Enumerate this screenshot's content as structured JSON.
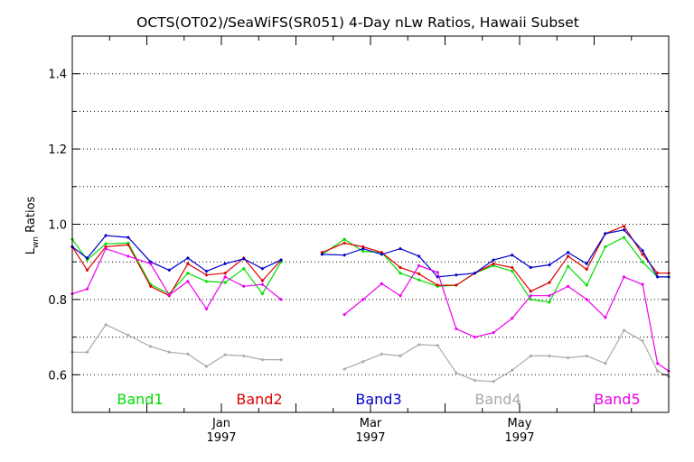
{
  "chart_data": {
    "type": "line",
    "title": "OCTS(OT02)/SeaWiFS(SR051) 4-Day nLw Ratios, Hawaii Subset",
    "ylabel_main": "L",
    "ylabel_sub": "wn",
    "ylabel_rest": " Ratios",
    "xlabel": "",
    "xlim": [
      0,
      8
    ],
    "ylim": [
      0.5,
      1.5
    ],
    "yticks": [
      0.6,
      0.8,
      1.0,
      1.2,
      1.4
    ],
    "ytick_labels": [
      "0.6",
      "0.8",
      "1.0",
      "1.2",
      "1.4"
    ],
    "ygrid": [
      0.6,
      0.7,
      0.8,
      0.9,
      1.0,
      1.1,
      1.2,
      1.3,
      1.4
    ],
    "grid": "horizontal dotted",
    "xticks": [
      {
        "x": 2.0,
        "label1": "Jan",
        "label2": "1997"
      },
      {
        "x": 4.0,
        "label1": "Mar",
        "label2": "1997"
      },
      {
        "x": 6.0,
        "label1": "May",
        "label2": "1997"
      }
    ],
    "x": [
      0.0,
      0.2,
      0.45,
      0.75,
      1.05,
      1.3,
      1.55,
      1.8,
      2.05,
      2.3,
      2.55,
      2.8,
      3.05,
      3.35,
      3.65,
      3.9,
      4.15,
      4.4,
      4.65,
      4.9,
      5.15,
      5.4,
      5.65,
      5.9,
      6.15,
      6.4,
      6.65,
      6.9,
      7.15,
      7.4,
      7.65,
      7.85,
      8.0
    ],
    "series": [
      {
        "name": "Band1",
        "color": "#00dd00",
        "values": [
          0.96,
          0.905,
          0.948,
          0.95,
          0.84,
          0.815,
          0.87,
          0.848,
          0.845,
          0.882,
          0.815,
          0.9,
          null,
          0.92,
          0.96,
          0.928,
          0.925,
          0.87,
          0.852,
          0.835,
          0.838,
          0.87,
          0.89,
          0.875,
          0.8,
          0.793,
          0.888,
          0.838,
          0.94,
          0.965,
          0.9,
          0.86,
          0.86
        ]
      },
      {
        "name": "Band2",
        "color": "#dd0000",
        "values": [
          0.94,
          0.878,
          0.94,
          0.945,
          0.835,
          0.81,
          0.895,
          0.865,
          0.87,
          0.91,
          0.85,
          0.905,
          null,
          0.925,
          0.95,
          0.94,
          0.925,
          0.885,
          0.868,
          0.838,
          0.838,
          0.87,
          0.895,
          0.885,
          0.822,
          0.845,
          0.915,
          0.88,
          0.975,
          0.995,
          0.92,
          0.87,
          0.87
        ]
      },
      {
        "name": "Band3",
        "color": "#0000cc",
        "values": [
          0.94,
          0.91,
          0.97,
          0.965,
          0.9,
          0.878,
          0.91,
          0.875,
          0.895,
          0.908,
          0.882,
          0.905,
          null,
          0.92,
          0.918,
          0.935,
          0.92,
          0.935,
          0.915,
          0.86,
          0.865,
          0.87,
          0.905,
          0.918,
          0.885,
          0.892,
          0.925,
          0.895,
          0.975,
          0.985,
          0.93,
          0.86,
          0.86
        ]
      },
      {
        "name": "Band4",
        "color": "#aaaaaa",
        "values": [
          0.66,
          0.66,
          0.733,
          0.705,
          0.675,
          0.66,
          0.655,
          0.622,
          0.653,
          0.65,
          0.64,
          0.64,
          null,
          null,
          0.615,
          0.635,
          0.655,
          0.65,
          0.68,
          0.678,
          0.605,
          0.585,
          0.582,
          0.612,
          0.65,
          0.65,
          0.645,
          0.65,
          0.63,
          0.718,
          0.69,
          0.61,
          0.595
        ]
      },
      {
        "name": "Band5",
        "color": "#ee00ee",
        "values": [
          0.815,
          0.828,
          0.935,
          0.915,
          0.895,
          0.812,
          0.848,
          0.775,
          0.86,
          0.835,
          0.84,
          0.8,
          null,
          null,
          0.76,
          0.8,
          0.842,
          0.81,
          0.89,
          0.872,
          0.722,
          0.7,
          0.712,
          0.75,
          0.81,
          0.81,
          0.835,
          0.8,
          0.752,
          0.86,
          0.84,
          0.63,
          0.61
        ]
      }
    ],
    "legend": {
      "placement": "bottom",
      "entries": [
        "Band1",
        "Band2",
        "Band3",
        "Band4",
        "Band5"
      ]
    },
    "colors": {
      "axis": "#000000",
      "grid": "#000000",
      "background": "#ffffff"
    }
  }
}
